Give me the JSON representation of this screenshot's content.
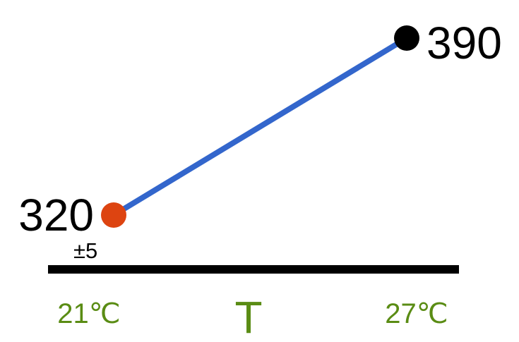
{
  "chart_data": {
    "type": "line",
    "xlabel": "T",
    "x": [
      21,
      27
    ],
    "tick_labels": [
      "21℃",
      "27℃"
    ],
    "values": [
      320,
      390
    ],
    "value_labels": [
      "320",
      "390"
    ],
    "uncertainty_label": "±5",
    "grid": false,
    "legend": "none"
  },
  "colors": {
    "line": "#3366cc",
    "start_point": "#dd4411",
    "end_point": "#000000",
    "axis": "#000000",
    "tick_text": "#5a8c14"
  }
}
